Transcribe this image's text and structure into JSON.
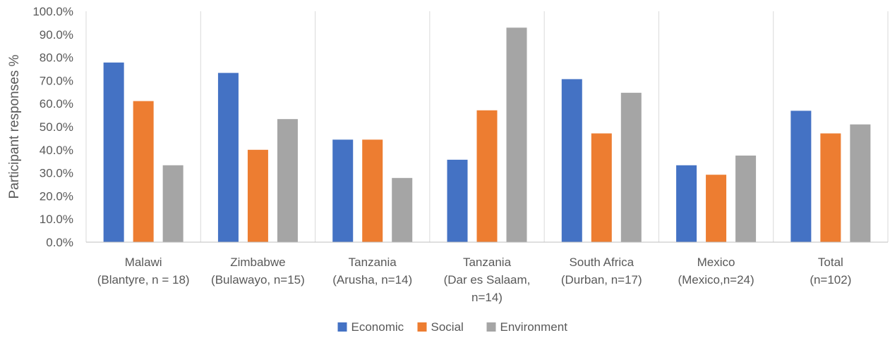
{
  "chart_data": {
    "type": "bar",
    "ylabel": "Participant responses %",
    "xlabel": "",
    "ylim": [
      0,
      100
    ],
    "ytick_step": 10,
    "ytick_labels": [
      "0.0%",
      "10.0%",
      "20.0%",
      "30.0%",
      "40.0%",
      "50.0%",
      "60.0%",
      "70.0%",
      "80.0%",
      "90.0%",
      "100.0%"
    ],
    "grid": "vertical separators between categories",
    "legend_position": "bottom",
    "categories": [
      [
        "Malawi",
        "(Blantyre, n = 18)"
      ],
      [
        "Zimbabwe",
        "(Bulawayo, n=15)"
      ],
      [
        "Tanzania",
        "(Arusha, n=14)"
      ],
      [
        "Tanzania",
        "(Dar es Salaam,",
        "n=14)"
      ],
      [
        "South Africa",
        "(Durban, n=17)"
      ],
      [
        "Mexico",
        "(Mexico,n=24)"
      ],
      [
        "Total",
        "(n=102)"
      ]
    ],
    "series": [
      {
        "name": "Economic",
        "color": "#4472C4",
        "values": [
          77.8,
          73.3,
          44.4,
          35.7,
          70.6,
          33.3,
          56.9
        ]
      },
      {
        "name": "Social",
        "color": "#ED7D31",
        "values": [
          61.1,
          40.0,
          44.4,
          57.1,
          47.1,
          29.2,
          47.1
        ]
      },
      {
        "name": "Environment",
        "color": "#A5A5A5",
        "values": [
          33.3,
          53.3,
          27.8,
          92.9,
          64.7,
          37.5,
          51.0
        ]
      }
    ]
  }
}
